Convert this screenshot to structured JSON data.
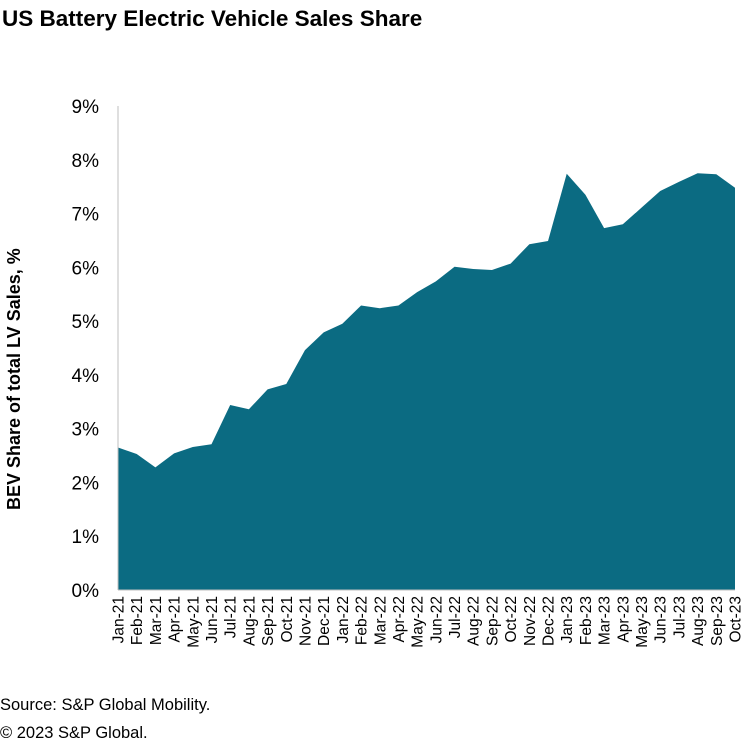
{
  "chart_data": {
    "type": "area",
    "title": "US Battery Electric Vehicle Sales Share",
    "xlabel": "",
    "ylabel": "BEV Share of total LV Sales, %",
    "categories": [
      "Jan-21",
      "Feb-21",
      "Mar-21",
      "Apr-21",
      "May-21",
      "Jun-21",
      "Jul-21",
      "Aug-21",
      "Sep-21",
      "Oct-21",
      "Nov-21",
      "Dec-21",
      "Jan-22",
      "Feb-22",
      "Mar-22",
      "Apr-22",
      "May-22",
      "Jun-22",
      "Jul-22",
      "Aug-22",
      "Sep-22",
      "Oct-22",
      "Nov-22",
      "Dec-22",
      "Jan-23",
      "Feb-23",
      "Mar-23",
      "Apr-23",
      "May-23",
      "Jun-23",
      "Jul-23",
      "Aug-23",
      "Sep-23",
      "Oct-23"
    ],
    "series": [
      {
        "name": "BEV Share",
        "values": [
          2.65,
          2.53,
          2.28,
          2.54,
          2.66,
          2.71,
          3.44,
          3.36,
          3.73,
          3.83,
          4.46,
          4.79,
          4.95,
          5.29,
          5.24,
          5.29,
          5.54,
          5.74,
          6.01,
          5.97,
          5.95,
          6.07,
          6.43,
          6.49,
          7.74,
          7.35,
          6.73,
          6.8,
          7.11,
          7.42,
          7.59,
          7.75,
          7.73,
          7.48
        ]
      }
    ],
    "ylim": [
      0,
      9
    ],
    "yticks": [
      "0%",
      "1%",
      "2%",
      "3%",
      "4%",
      "5%",
      "6%",
      "7%",
      "8%",
      "9%"
    ],
    "grid": false,
    "legend": "none",
    "fill_color": "#0b6b82"
  },
  "footer": {
    "source": "Source: S&P Global Mobility.",
    "copyright": "© 2023 S&P Global."
  }
}
